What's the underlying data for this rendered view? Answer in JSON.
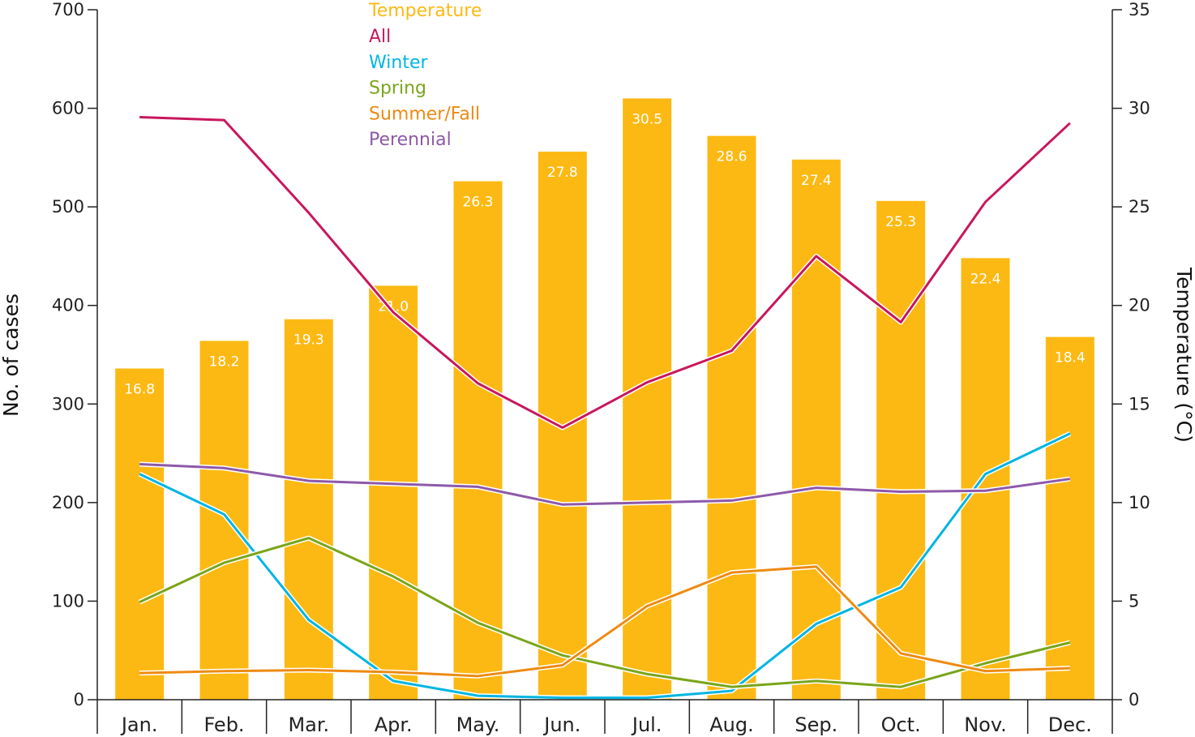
{
  "chart_data": {
    "type": "bar+line",
    "categories": [
      "Jan.",
      "Feb.",
      "Mar.",
      "Apr.",
      "May.",
      "Jun.",
      "Jul.",
      "Aug.",
      "Sep.",
      "Oct.",
      "Nov.",
      "Dec."
    ],
    "ylabel": "No. of cases",
    "ylabel_right": "Temperature (°C)",
    "ylim": [
      0,
      700
    ],
    "ylim_right": [
      0,
      35
    ],
    "yticks": [
      0,
      100,
      200,
      300,
      400,
      500,
      600,
      700
    ],
    "yticks_right": [
      0,
      5,
      10,
      15,
      20,
      25,
      30,
      35
    ],
    "legend_placement": "top-center",
    "bars": {
      "name": "Temperature",
      "axis": "right",
      "color": "#FDB913",
      "values": [
        16.8,
        18.2,
        19.3,
        21.0,
        26.3,
        27.8,
        30.5,
        28.6,
        27.4,
        25.3,
        22.4,
        18.4
      ]
    },
    "series": [
      {
        "name": "All",
        "color": "#C8175D",
        "values": [
          591,
          588,
          494,
          393,
          321,
          276,
          322,
          354,
          450,
          383,
          505,
          585
        ]
      },
      {
        "name": "Winter",
        "color": "#00B5E2",
        "values": [
          229,
          188,
          81,
          19,
          4,
          2,
          2,
          9,
          77,
          114,
          229,
          270
        ]
      },
      {
        "name": "Spring",
        "color": "#7AA51A",
        "values": [
          99,
          139,
          164,
          125,
          78,
          45,
          26,
          13,
          19,
          13,
          37,
          58
        ]
      },
      {
        "name": "Summer/Fall",
        "color": "#EE8A12",
        "values": [
          27,
          29,
          30,
          28,
          24,
          35,
          95,
          129,
          135,
          47,
          29,
          32
        ]
      },
      {
        "name": "Perennial",
        "color": "#8E59A8",
        "values": [
          239,
          235,
          222,
          219,
          216,
          198,
          200,
          202,
          215,
          211,
          212,
          224
        ]
      }
    ]
  }
}
